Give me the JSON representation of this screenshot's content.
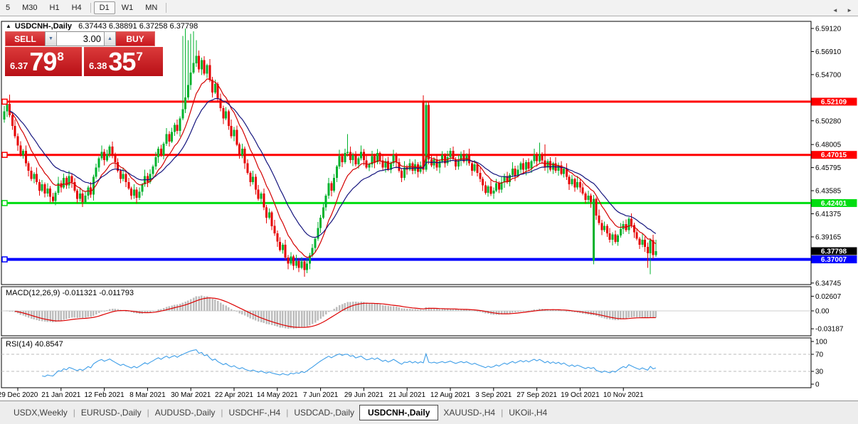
{
  "toolbar": {
    "timeframes": [
      "5",
      "M30",
      "H1",
      "H4",
      "D1",
      "W1",
      "MN"
    ],
    "active": "D1",
    "separators_after": [
      3,
      6
    ]
  },
  "chart": {
    "collapse_icon": "▲",
    "title": "USDCNH-,Daily",
    "ohlc": "6.37443 6.38891 6.37258 6.37798"
  },
  "trade_widget": {
    "sell_label": "SELL",
    "buy_label": "BUY",
    "volume": "3.00",
    "spin_up_icon": "▲",
    "spin_down_icon": "▼",
    "sell_price": {
      "small": "6.37",
      "big": "79",
      "sup": "8"
    },
    "buy_price": {
      "small": "6.38",
      "big": "35",
      "sup": "7"
    }
  },
  "indicators": {
    "macd_label": "MACD(12,26,9) -0.011321 -0.011793",
    "rsi_label": "RSI(14) 40.8547"
  },
  "tabs": {
    "items": [
      "USDX,Weekly",
      "EURUSD-,Daily",
      "AUDUSD-,Daily",
      "USDCHF-,H4",
      "USDCAD-,Daily",
      "USDCNH-,Daily",
      "XAUUSD-,H4",
      "UKOil-,H4"
    ],
    "active_index": 5,
    "scroll_left_icon": "◄",
    "scroll_right_icon": "►"
  },
  "colors": {
    "bull": "#00b22d",
    "bear": "#e60000",
    "ma_fast": "#d40000",
    "ma_slow": "#15157e",
    "hline_red": "#ff0000",
    "hline_green": "#00dd11",
    "hline_blue": "#0000ff",
    "macd_hist": "#bdbdbd",
    "macd_signal": "#dd0000",
    "rsi_line": "#3e9ee8",
    "tag_current": "#000000",
    "panel_border": "#000000"
  },
  "chart_data": {
    "type": "candlestick",
    "symbol": "USDCNH-",
    "timeframe": "Daily",
    "last_ohlc": {
      "open": 6.37443,
      "high": 6.38891,
      "low": 6.37258,
      "close": 6.37798
    },
    "price_ticks": [
      "6.59120",
      "6.56910",
      "6.54700",
      "6.50280",
      "6.48005",
      "6.45795",
      "6.43585",
      "6.41375",
      "6.39165",
      "6.34745"
    ],
    "x_labels": [
      "29 Dec 2020",
      "21 Jan 2021",
      "12 Feb 2021",
      "8 Mar 2021",
      "30 Mar 2021",
      "22 Apr 2021",
      "14 May 2021",
      "7 Jun 2021",
      "29 Jun 2021",
      "21 Jul 2021",
      "12 Aug 2021",
      "3 Sep 2021",
      "27 Sep 2021",
      "19 Oct 2021",
      "10 Nov 2021"
    ],
    "hlines": [
      {
        "price": 6.52109,
        "label": "6.52109",
        "color": "hline_red",
        "width": 3
      },
      {
        "price": 6.47015,
        "label": "6.47015",
        "color": "hline_red",
        "width": 3
      },
      {
        "price": 6.42401,
        "label": "6.42401",
        "color": "hline_green",
        "width": 3
      },
      {
        "price": 6.37007,
        "label": "6.37007",
        "color": "hline_blue",
        "width": 4
      }
    ],
    "current_price_tag": {
      "price": 6.37798,
      "label": "6.37798"
    },
    "closes": [
      6.512,
      6.519,
      6.508,
      6.498,
      6.488,
      6.479,
      6.47,
      6.474,
      6.462,
      6.455,
      6.447,
      6.452,
      6.444,
      6.436,
      6.442,
      6.433,
      6.438,
      6.43,
      6.426,
      6.434,
      6.443,
      6.439,
      6.448,
      6.441,
      6.45,
      6.444,
      6.436,
      6.428,
      6.433,
      6.425,
      6.431,
      6.439,
      6.432,
      6.449,
      6.458,
      6.467,
      6.473,
      6.465,
      6.471,
      6.478,
      6.47,
      6.463,
      6.455,
      6.447,
      6.452,
      6.444,
      6.438,
      6.431,
      6.437,
      6.429,
      6.435,
      6.442,
      6.45,
      6.444,
      6.452,
      6.459,
      6.468,
      6.476,
      6.47,
      6.481,
      6.49,
      6.483,
      6.492,
      6.499,
      6.493,
      6.505,
      6.514,
      6.525,
      6.537,
      6.549,
      6.558,
      6.565,
      6.552,
      6.561,
      6.548,
      6.556,
      6.542,
      6.53,
      6.538,
      6.524,
      6.515,
      6.505,
      6.512,
      6.498,
      6.488,
      6.494,
      6.48,
      6.47,
      6.476,
      6.462,
      6.453,
      6.444,
      6.449,
      6.437,
      6.428,
      6.433,
      6.42,
      6.41,
      6.415,
      6.402,
      6.395,
      6.387,
      6.379,
      6.384,
      6.372,
      6.366,
      6.373,
      6.364,
      6.3685,
      6.362,
      6.368,
      6.36,
      6.366,
      6.374,
      6.381,
      6.39,
      6.4,
      6.41,
      6.42,
      6.431,
      6.443,
      6.436,
      6.448,
      6.459,
      6.469,
      6.463,
      6.472,
      6.473,
      6.465,
      6.47,
      6.461,
      6.467,
      6.473,
      6.465,
      6.458,
      6.461,
      6.469,
      6.463,
      6.472,
      6.465,
      6.458,
      6.464,
      6.456,
      6.462,
      6.47,
      6.463,
      6.455,
      6.448,
      6.458,
      6.456,
      6.462,
      6.455,
      6.461,
      6.454,
      6.46,
      6.456,
      6.518,
      6.466,
      6.46,
      6.466,
      6.458,
      6.464,
      6.47,
      6.462,
      6.468,
      6.474,
      6.466,
      6.459,
      6.465,
      6.471,
      6.464,
      6.47,
      6.462,
      6.455,
      6.461,
      6.453,
      6.447,
      6.441,
      6.434,
      6.44,
      6.433,
      6.436,
      6.443,
      6.437,
      6.444,
      6.45,
      6.444,
      6.451,
      6.457,
      6.45,
      6.456,
      6.462,
      6.456,
      6.463,
      6.457,
      6.464,
      6.47,
      6.464,
      6.471,
      6.465,
      6.458,
      6.464,
      6.456,
      6.462,
      6.455,
      6.46,
      6.452,
      6.457,
      6.449,
      6.442,
      6.447,
      6.439,
      6.444,
      6.439,
      6.433,
      6.427,
      6.431,
      6.425,
      6.428,
      6.412,
      6.405,
      6.398,
      6.402,
      6.395,
      6.389,
      6.394,
      6.387,
      6.393,
      6.399,
      6.404,
      6.398,
      6.409,
      6.403,
      6.396,
      6.39,
      6.384,
      6.389,
      6.382,
      6.376,
      6.3885,
      6.3744,
      6.37798
    ],
    "wick_upper_pattern": [
      0.005,
      0.0022,
      0.0038,
      0.0015,
      0.006,
      0.0028,
      0.0042,
      0.0018
    ],
    "wick_lower_pattern": [
      0.003,
      0.0055,
      0.0018,
      0.004,
      0.0022,
      0.0048,
      0.0015,
      0.0035
    ],
    "overrides": {
      "0": {
        "o": 6.504
      },
      "2": {
        "h": 6.528
      },
      "66": {
        "h": 6.584
      },
      "67": {
        "h": 6.5912
      },
      "68": {
        "h": 6.58
      },
      "69": {
        "h": 6.586
      },
      "70": {
        "h": 6.5885
      },
      "71": {
        "h": 6.58
      },
      "109": {
        "l": 6.358
      },
      "111": {
        "l": 6.3535
      },
      "127": {
        "h": 6.49
      },
      "155": {
        "o": 6.521,
        "h": 6.527
      },
      "156": {
        "h": 6.5215
      },
      "198": {
        "h": 6.482
      },
      "200": {
        "h": 6.48
      },
      "218": {
        "o": 6.369,
        "l": 6.3655
      },
      "238": {
        "l": 6.362
      },
      "239": {
        "l": 6.356
      },
      "240": {
        "l": 6.37
      },
      "241": {
        "h": 6.38891,
        "l": 6.37258
      }
    },
    "moving_averages": [
      {
        "period": 10,
        "color": "ma_fast"
      },
      {
        "period": 21,
        "color": "ma_slow"
      }
    ],
    "macd": {
      "fast": 12,
      "slow": 26,
      "signal": 9,
      "value": -0.011321,
      "signal_value": -0.011793,
      "axis_ticks": [
        {
          "label": "0.02607",
          "v": 0.02607
        },
        {
          "label": "0.00",
          "v": 0
        },
        {
          "label": "-0.03187",
          "v": -0.03187
        }
      ]
    },
    "rsi": {
      "period": 14,
      "value": 40.8547,
      "axis_ticks": [
        {
          "label": "100",
          "v": 100
        },
        {
          "label": "70",
          "v": 70
        },
        {
          "label": "30",
          "v": 30
        },
        {
          "label": "0",
          "v": 0
        }
      ],
      "dashed_levels": [
        70,
        30
      ]
    }
  }
}
